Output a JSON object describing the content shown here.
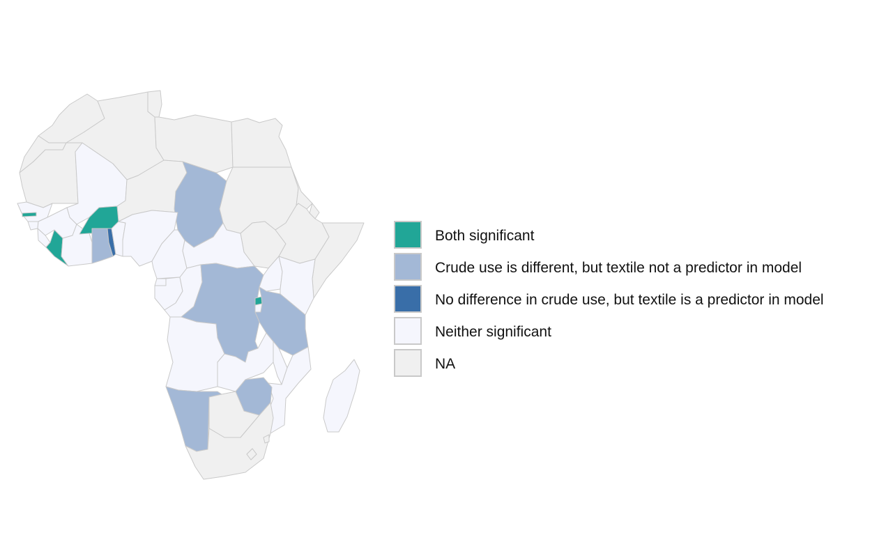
{
  "map": {
    "categories": {
      "both": "Both significant",
      "crude": "Crude use is different, but textile not a predictor in model",
      "textile": "No difference in crude use, but textile is a predictor in model",
      "neither": "Neither significant",
      "na": "NA"
    },
    "colors": {
      "both": "#21a697",
      "crude": "#a3b8d6",
      "textile": "#396ea8",
      "neither": "#f5f6fd",
      "na": "#f0f0f0",
      "border": "#c9c9c9"
    },
    "countries": [
      {
        "name": "morocco",
        "category": "na"
      },
      {
        "name": "western-sahara",
        "category": "na"
      },
      {
        "name": "algeria",
        "category": "na"
      },
      {
        "name": "tunisia",
        "category": "na"
      },
      {
        "name": "libya",
        "category": "na"
      },
      {
        "name": "egypt",
        "category": "na"
      },
      {
        "name": "mauritania",
        "category": "na"
      },
      {
        "name": "mali",
        "category": "neither"
      },
      {
        "name": "niger",
        "category": "na"
      },
      {
        "name": "chad",
        "category": "crude"
      },
      {
        "name": "sudan",
        "category": "na"
      },
      {
        "name": "south-sudan",
        "category": "na"
      },
      {
        "name": "eritrea",
        "category": "na"
      },
      {
        "name": "djibouti",
        "category": "na"
      },
      {
        "name": "ethiopia",
        "category": "na"
      },
      {
        "name": "somalia",
        "category": "na"
      },
      {
        "name": "senegal",
        "category": "neither"
      },
      {
        "name": "gambia",
        "category": "both"
      },
      {
        "name": "guinea-bissau",
        "category": "neither"
      },
      {
        "name": "guinea",
        "category": "neither"
      },
      {
        "name": "sierra-leone",
        "category": "neither"
      },
      {
        "name": "liberia",
        "category": "both"
      },
      {
        "name": "cote-divoire",
        "category": "neither"
      },
      {
        "name": "burkina-faso",
        "category": "both"
      },
      {
        "name": "ghana",
        "category": "crude"
      },
      {
        "name": "togo",
        "category": "textile"
      },
      {
        "name": "benin",
        "category": "neither"
      },
      {
        "name": "nigeria",
        "category": "neither"
      },
      {
        "name": "cameroon",
        "category": "neither"
      },
      {
        "name": "central-african-republic",
        "category": "neither"
      },
      {
        "name": "equatorial-guinea",
        "category": "neither"
      },
      {
        "name": "gabon",
        "category": "neither"
      },
      {
        "name": "congo",
        "category": "neither"
      },
      {
        "name": "dr-congo",
        "category": "crude"
      },
      {
        "name": "uganda",
        "category": "neither"
      },
      {
        "name": "kenya",
        "category": "neither"
      },
      {
        "name": "rwanda",
        "category": "both"
      },
      {
        "name": "burundi",
        "category": "neither"
      },
      {
        "name": "tanzania",
        "category": "crude"
      },
      {
        "name": "angola",
        "category": "neither"
      },
      {
        "name": "zambia",
        "category": "neither"
      },
      {
        "name": "malawi",
        "category": "neither"
      },
      {
        "name": "mozambique",
        "category": "neither"
      },
      {
        "name": "zimbabwe",
        "category": "crude"
      },
      {
        "name": "namibia",
        "category": "crude"
      },
      {
        "name": "botswana",
        "category": "na"
      },
      {
        "name": "south-africa",
        "category": "na"
      },
      {
        "name": "lesotho",
        "category": "na"
      },
      {
        "name": "eswatini",
        "category": "na"
      },
      {
        "name": "madagascar",
        "category": "neither"
      }
    ]
  },
  "legend": {
    "items": [
      {
        "key": "both",
        "label": "Both significant"
      },
      {
        "key": "crude",
        "label": "Crude use is different, but textile not a predictor in model"
      },
      {
        "key": "textile",
        "label": "No difference in crude use, but textile is a predictor in model"
      },
      {
        "key": "neither",
        "label": "Neither significant"
      },
      {
        "key": "na",
        "label": "NA"
      }
    ]
  }
}
